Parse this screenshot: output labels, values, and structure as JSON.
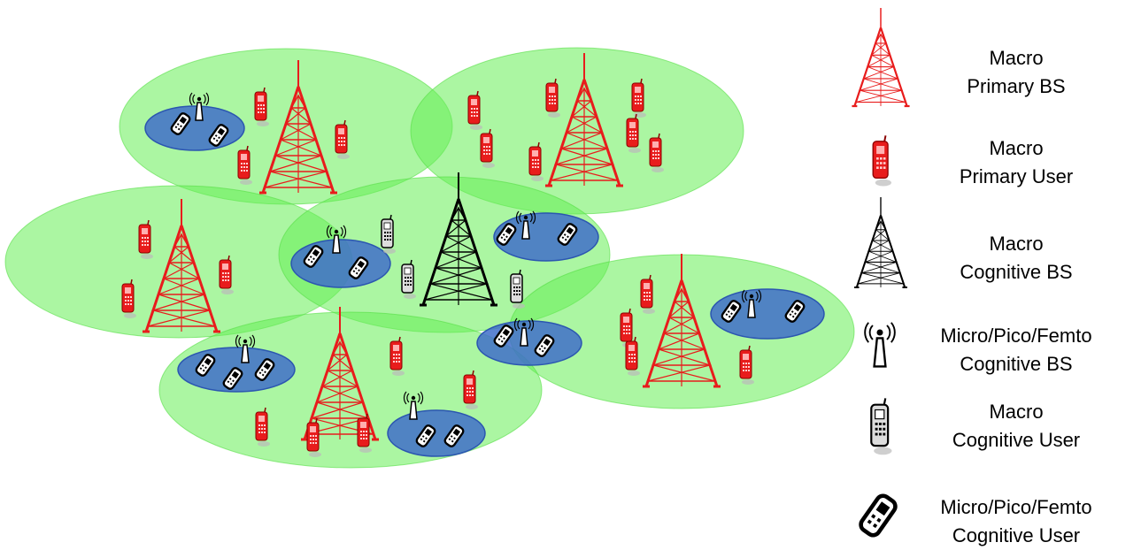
{
  "legend": [
    {
      "icon": "macro-primary-bs-icon",
      "line1": "Macro",
      "line2": "Primary BS"
    },
    {
      "icon": "macro-primary-user-icon",
      "line1": "Macro",
      "line2": "Primary User"
    },
    {
      "icon": "macro-cognitive-bs-icon",
      "line1": "Macro",
      "line2": "Cognitive BS"
    },
    {
      "icon": "small-cell-cognitive-bs-icon",
      "line1": "Micro/Pico/Femto",
      "line2": "Cognitive BS"
    },
    {
      "icon": "macro-cognitive-user-icon",
      "line1": "Macro",
      "line2": "Cognitive User"
    },
    {
      "icon": "small-cell-cognitive-user-icon",
      "line1": "Micro/Pico/Femto",
      "line2": "Cognitive User"
    }
  ],
  "colors": {
    "primary": "#e81c1c",
    "cognitive": "#000000",
    "macro_cell_fill": "#66ee55",
    "small_cell_fill": "#3f6fc9",
    "small_cell_stroke": "#2b56b0"
  }
}
